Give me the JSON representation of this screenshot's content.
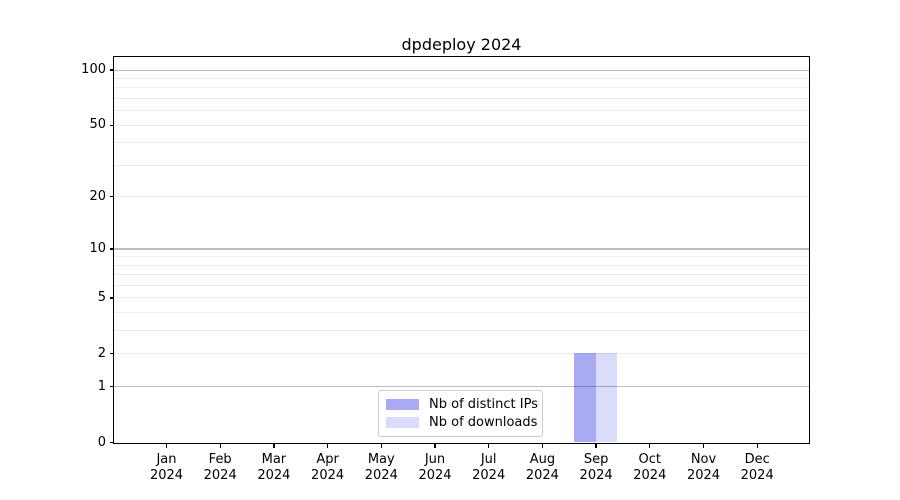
{
  "chart_data": {
    "type": "bar",
    "title": "dpdeploy 2024",
    "xlabel": "",
    "ylabel": "",
    "categories": [
      "Jan 2024",
      "Feb 2024",
      "Mar 2024",
      "Apr 2024",
      "May 2024",
      "Jun 2024",
      "Jul 2024",
      "Aug 2024",
      "Sep 2024",
      "Oct 2024",
      "Nov 2024",
      "Dec 2024"
    ],
    "series": [
      {
        "name": "Nb of distinct IPs",
        "color": "#aaaaf2",
        "values": [
          0,
          0,
          0,
          0,
          0,
          0,
          0,
          0,
          2,
          0,
          0,
          0
        ]
      },
      {
        "name": "Nb of downloads",
        "color": "#dbdbfa",
        "values": [
          0,
          0,
          0,
          0,
          0,
          0,
          0,
          0,
          2,
          0,
          0,
          0
        ]
      }
    ],
    "yscale": "log1p",
    "ylim": [
      0,
      117
    ],
    "yticks": [
      0,
      1,
      2,
      5,
      10,
      20,
      50,
      100
    ],
    "major_gridlines": [
      1,
      10,
      100
    ],
    "minor_gridlines": [
      2,
      3,
      4,
      5,
      6,
      7,
      8,
      9,
      20,
      30,
      40,
      50,
      60,
      70,
      80,
      90
    ],
    "grid": true,
    "legend_position": "lower center",
    "colors": {
      "major_grid": "#bcbcbc",
      "minor_grid": "#ededed",
      "spine": "#000000",
      "text": "#000000",
      "legend_border": "#cccccc"
    }
  }
}
